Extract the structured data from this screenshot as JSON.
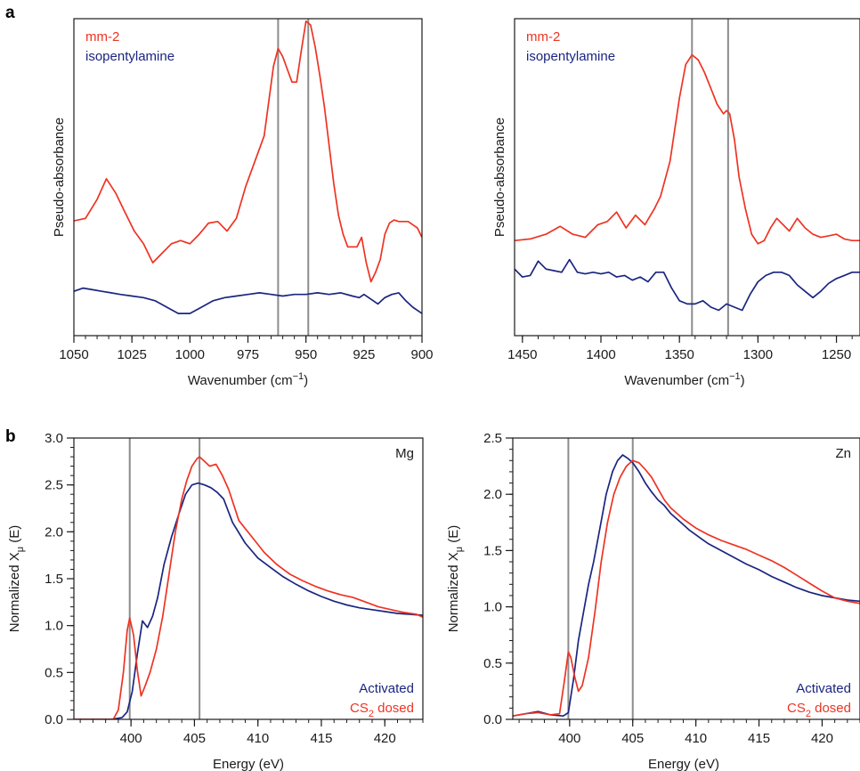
{
  "panel_labels": {
    "a": "a",
    "b": "b"
  },
  "colors": {
    "red": "#ee3322",
    "navy": "#1a2580",
    "marker": "#8c8c8c",
    "axis": "#1a1a1a"
  },
  "chart_data": [
    {
      "id": "ir-left",
      "type": "line",
      "xlabel": "Wavenumber (cm",
      "xlabel_sup": "−1",
      "xlabel_tail": ")",
      "ylabel": "Pseudo-absorbance",
      "xlim": [
        1050,
        900
      ],
      "ylim": [
        0,
        1
      ],
      "y_ticks_shown": false,
      "x_ticks": [
        1050,
        1025,
        1000,
        975,
        950,
        925,
        900
      ],
      "x_tick_labels": [
        "1050",
        "1025",
        "1000",
        "975",
        "950",
        "925",
        "900"
      ],
      "minor_x_step": 5,
      "vlines": [
        962,
        949
      ],
      "legend": {
        "placement": "top-left",
        "entries": [
          {
            "label": "mm-2",
            "color": "#ee3322"
          },
          {
            "label": "isopentylamine",
            "color": "#1a2580"
          }
        ]
      },
      "series": [
        {
          "name": "mm-2",
          "color": "#ee3322",
          "x": [
            1050,
            1045,
            1040,
            1036,
            1032,
            1028,
            1024,
            1020,
            1016,
            1012,
            1008,
            1004,
            1000,
            996,
            992,
            988,
            984,
            980,
            976,
            972,
            968,
            964,
            962,
            960,
            958,
            956,
            954,
            952,
            950,
            948,
            946,
            944,
            942,
            940,
            938,
            936,
            934,
            932,
            930,
            928,
            926,
            924,
            922,
            920,
            918,
            916,
            914,
            912,
            910,
            906,
            902,
            900
          ],
          "y": [
            0.362,
            0.37,
            0.43,
            0.495,
            0.45,
            0.39,
            0.33,
            0.29,
            0.23,
            0.26,
            0.29,
            0.3,
            0.29,
            0.32,
            0.355,
            0.36,
            0.33,
            0.37,
            0.47,
            0.55,
            0.63,
            0.85,
            0.906,
            0.88,
            0.84,
            0.8,
            0.8,
            0.9,
            0.992,
            0.98,
            0.91,
            0.82,
            0.72,
            0.6,
            0.48,
            0.38,
            0.32,
            0.28,
            0.28,
            0.28,
            0.31,
            0.23,
            0.17,
            0.2,
            0.24,
            0.32,
            0.355,
            0.365,
            0.36,
            0.36,
            0.34,
            0.31
          ]
        },
        {
          "name": "isopentylamine",
          "color": "#1a2580",
          "x": [
            1050,
            1046,
            1042,
            1038,
            1034,
            1030,
            1025,
            1020,
            1015,
            1010,
            1005,
            1000,
            995,
            990,
            985,
            980,
            975,
            970,
            965,
            960,
            955,
            950,
            945,
            940,
            935,
            930,
            927,
            925,
            922,
            919,
            916,
            913,
            910,
            907,
            904,
            900
          ],
          "y": [
            0.14,
            0.15,
            0.145,
            0.14,
            0.135,
            0.13,
            0.125,
            0.12,
            0.11,
            0.09,
            0.07,
            0.07,
            0.09,
            0.11,
            0.12,
            0.125,
            0.13,
            0.135,
            0.13,
            0.125,
            0.13,
            0.13,
            0.135,
            0.13,
            0.135,
            0.125,
            0.12,
            0.13,
            0.115,
            0.1,
            0.12,
            0.13,
            0.135,
            0.11,
            0.09,
            0.07
          ]
        }
      ]
    },
    {
      "id": "ir-right",
      "type": "line",
      "xlabel": "Wavenumber (cm",
      "xlabel_sup": "−1",
      "xlabel_tail": ")",
      "ylabel": "Pseudo-absorbance",
      "xlim": [
        1455,
        1235
      ],
      "ylim": [
        0,
        1
      ],
      "y_ticks_shown": false,
      "x_ticks": [
        1450,
        1400,
        1350,
        1300,
        1250
      ],
      "x_tick_labels": [
        "1450",
        "1400",
        "1350",
        "1300",
        "1250"
      ],
      "minor_x_step": 10,
      "vlines": [
        1342,
        1319
      ],
      "legend": {
        "placement": "top-left",
        "entries": [
          {
            "label": "mm-2",
            "color": "#ee3322"
          },
          {
            "label": "isopentylamine",
            "color": "#1a2580"
          }
        ]
      },
      "series": [
        {
          "name": "mm-2",
          "color": "#ee3322",
          "x": [
            1455,
            1445,
            1435,
            1426,
            1418,
            1410,
            1402,
            1396,
            1390,
            1384,
            1378,
            1372,
            1366,
            1362,
            1356,
            1350,
            1346,
            1342,
            1338,
            1334,
            1330,
            1326,
            1322,
            1320,
            1318,
            1315,
            1312,
            1308,
            1304,
            1300,
            1296,
            1292,
            1288,
            1284,
            1280,
            1275,
            1270,
            1265,
            1260,
            1255,
            1250,
            1245,
            1240,
            1235
          ],
          "y": [
            0.3,
            0.305,
            0.32,
            0.345,
            0.32,
            0.31,
            0.35,
            0.36,
            0.39,
            0.34,
            0.38,
            0.35,
            0.4,
            0.44,
            0.55,
            0.75,
            0.855,
            0.886,
            0.87,
            0.83,
            0.78,
            0.73,
            0.7,
            0.71,
            0.7,
            0.62,
            0.5,
            0.4,
            0.32,
            0.29,
            0.3,
            0.34,
            0.37,
            0.35,
            0.33,
            0.37,
            0.34,
            0.32,
            0.31,
            0.315,
            0.32,
            0.305,
            0.3,
            0.3
          ]
        },
        {
          "name": "isopentylamine",
          "color": "#1a2580",
          "x": [
            1455,
            1450,
            1445,
            1440,
            1435,
            1430,
            1425,
            1420,
            1415,
            1410,
            1405,
            1400,
            1395,
            1390,
            1385,
            1380,
            1375,
            1370,
            1365,
            1360,
            1355,
            1350,
            1345,
            1340,
            1335,
            1330,
            1325,
            1320,
            1315,
            1310,
            1305,
            1300,
            1295,
            1290,
            1285,
            1280,
            1275,
            1270,
            1265,
            1260,
            1255,
            1250,
            1245,
            1240,
            1235
          ],
          "y": [
            0.21,
            0.185,
            0.19,
            0.235,
            0.21,
            0.205,
            0.2,
            0.24,
            0.2,
            0.195,
            0.2,
            0.195,
            0.2,
            0.185,
            0.19,
            0.175,
            0.185,
            0.17,
            0.2,
            0.2,
            0.15,
            0.11,
            0.1,
            0.1,
            0.11,
            0.09,
            0.08,
            0.1,
            0.09,
            0.08,
            0.13,
            0.17,
            0.19,
            0.2,
            0.2,
            0.19,
            0.16,
            0.14,
            0.12,
            0.14,
            0.165,
            0.18,
            0.19,
            0.2,
            0.2
          ]
        }
      ]
    },
    {
      "id": "xanes-mg",
      "type": "line",
      "xlabel": "Energy (eV)",
      "ylabel": "Normalized X",
      "ylabel_sub": "μ",
      "ylabel_tail": " (E)",
      "xlim": [
        395.5,
        423
      ],
      "ylim": [
        0,
        3
      ],
      "x_ticks": [
        400,
        405,
        410,
        415,
        420
      ],
      "x_tick_labels": [
        "400",
        "405",
        "410",
        "415",
        "420"
      ],
      "minor_x_step": 1,
      "y_ticks": [
        0,
        0.5,
        1,
        1.5,
        2,
        2.5,
        3
      ],
      "y_tick_labels": [
        "0.0",
        "0.5",
        "1.0",
        "1.5",
        "2.0",
        "2.5",
        "3.0"
      ],
      "minor_y_step": 0.1,
      "vlines": [
        399.9,
        405.4
      ],
      "annotation": "Mg",
      "legend": {
        "placement": "bottom-right",
        "entries": [
          {
            "label": "Activated",
            "color": "#1a2580"
          },
          {
            "label": "CS",
            "sub": "2",
            "tail": " dosed",
            "color": "#ee3322"
          }
        ]
      },
      "series": [
        {
          "name": "Activated",
          "color": "#1a2580",
          "x": [
            395.5,
            398.5,
            399.3,
            399.7,
            400.1,
            400.5,
            400.9,
            401.3,
            401.7,
            402.1,
            402.6,
            403.2,
            403.8,
            404.3,
            404.8,
            405.3,
            405.8,
            406.3,
            406.8,
            407.3,
            408,
            409,
            410,
            411,
            412,
            413,
            414,
            415,
            416,
            417,
            418,
            419,
            420,
            421,
            422,
            423
          ],
          "y": [
            0,
            0,
            0.02,
            0.08,
            0.3,
            0.7,
            1.05,
            0.98,
            1.1,
            1.3,
            1.65,
            1.95,
            2.2,
            2.4,
            2.5,
            2.52,
            2.5,
            2.47,
            2.42,
            2.35,
            2.1,
            1.88,
            1.72,
            1.62,
            1.52,
            1.44,
            1.37,
            1.31,
            1.26,
            1.22,
            1.19,
            1.17,
            1.15,
            1.13,
            1.12,
            1.11
          ]
        },
        {
          "name": "CS2 dosed",
          "color": "#ee3322",
          "x": [
            395.5,
            398.6,
            399,
            399.4,
            399.7,
            399.9,
            400.2,
            400.5,
            400.8,
            401.1,
            401.5,
            402,
            402.5,
            403,
            403.5,
            404,
            404.4,
            404.8,
            405.2,
            405.4,
            405.8,
            406.2,
            406.7,
            407.2,
            407.7,
            408.5,
            409.5,
            410.5,
            411.5,
            412.5,
            413.5,
            414.5,
            415.5,
            416.5,
            417.5,
            418.5,
            419.5,
            420.5,
            421.5,
            422.5,
            423
          ],
          "y": [
            0,
            0,
            0.1,
            0.5,
            0.95,
            1.08,
            0.9,
            0.52,
            0.25,
            0.35,
            0.5,
            0.75,
            1.1,
            1.55,
            2.0,
            2.35,
            2.55,
            2.7,
            2.78,
            2.8,
            2.75,
            2.7,
            2.72,
            2.6,
            2.45,
            2.12,
            1.95,
            1.78,
            1.65,
            1.55,
            1.48,
            1.42,
            1.37,
            1.33,
            1.3,
            1.25,
            1.2,
            1.17,
            1.14,
            1.12,
            1.09
          ]
        }
      ]
    },
    {
      "id": "xanes-zn",
      "type": "line",
      "xlabel": "Energy (eV)",
      "ylabel": "Normalized X",
      "ylabel_sub": "μ",
      "ylabel_tail": " (E)",
      "xlim": [
        395.5,
        423
      ],
      "ylim": [
        0,
        2.5
      ],
      "x_ticks": [
        400,
        405,
        410,
        415,
        420
      ],
      "x_tick_labels": [
        "400",
        "405",
        "410",
        "415",
        "420"
      ],
      "minor_x_step": 1,
      "y_ticks": [
        0,
        0.5,
        1,
        1.5,
        2,
        2.5
      ],
      "y_tick_labels": [
        "0.0",
        "0.5",
        "1.0",
        "1.5",
        "2.0",
        "2.5"
      ],
      "minor_y_step": 0.1,
      "vlines": [
        399.9,
        405.0
      ],
      "annotation": "Zn",
      "legend": {
        "placement": "bottom-right",
        "entries": [
          {
            "label": "Activated",
            "color": "#1a2580"
          },
          {
            "label": "CS",
            "sub": "2",
            "tail": " dosed",
            "color": "#ee3322"
          }
        ]
      },
      "series": [
        {
          "name": "Activated",
          "color": "#1a2580",
          "x": [
            395.5,
            396.5,
            397.5,
            398.5,
            399.5,
            399.9,
            400.3,
            400.7,
            401.1,
            401.5,
            401.9,
            402.4,
            402.9,
            403.4,
            403.8,
            404.2,
            404.6,
            405,
            405.5,
            406,
            406.5,
            407,
            407.5,
            408,
            408.5,
            409,
            409.5,
            410,
            410.5,
            411,
            412,
            413,
            414,
            415,
            416,
            417,
            418,
            419,
            420,
            421,
            422,
            423
          ],
          "y": [
            0.03,
            0.05,
            0.07,
            0.04,
            0.03,
            0.06,
            0.35,
            0.7,
            0.95,
            1.2,
            1.4,
            1.7,
            2.0,
            2.2,
            2.3,
            2.35,
            2.32,
            2.28,
            2.2,
            2.1,
            2.02,
            1.95,
            1.9,
            1.83,
            1.78,
            1.73,
            1.68,
            1.64,
            1.6,
            1.56,
            1.5,
            1.44,
            1.38,
            1.33,
            1.27,
            1.22,
            1.17,
            1.13,
            1.1,
            1.08,
            1.06,
            1.05
          ]
        },
        {
          "name": "CS2 dosed",
          "color": "#ee3322",
          "x": [
            395.5,
            396.5,
            397.5,
            398.5,
            399.2,
            399.6,
            399.9,
            400.1,
            400.4,
            400.7,
            401,
            401.5,
            402,
            402.5,
            403,
            403.5,
            404,
            404.5,
            405,
            405.5,
            406,
            406.5,
            407,
            407.5,
            408,
            409,
            410,
            411,
            412,
            413,
            414,
            415,
            416,
            417,
            418,
            419,
            420,
            421,
            422,
            423
          ],
          "y": [
            0.03,
            0.05,
            0.06,
            0.04,
            0.05,
            0.35,
            0.6,
            0.55,
            0.38,
            0.25,
            0.3,
            0.55,
            0.95,
            1.4,
            1.75,
            2.0,
            2.15,
            2.25,
            2.3,
            2.28,
            2.22,
            2.15,
            2.05,
            1.95,
            1.88,
            1.78,
            1.7,
            1.64,
            1.59,
            1.55,
            1.51,
            1.46,
            1.41,
            1.35,
            1.28,
            1.21,
            1.14,
            1.08,
            1.05,
            1.03
          ]
        }
      ]
    }
  ]
}
